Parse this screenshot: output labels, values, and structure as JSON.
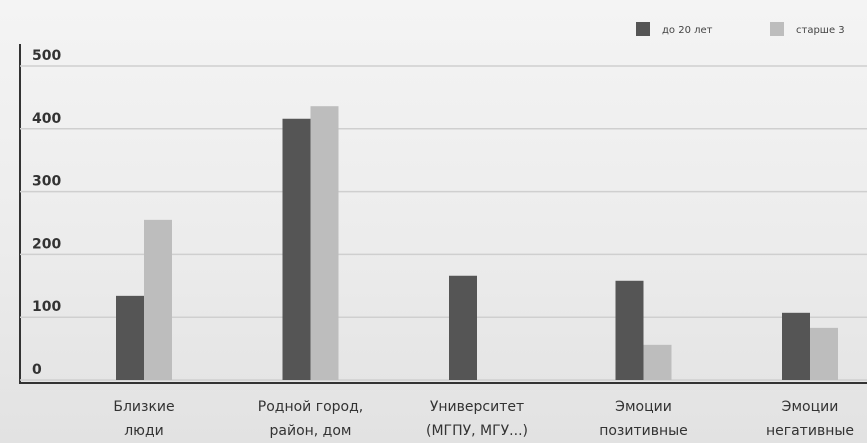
{
  "chart_data": {
    "type": "bar",
    "categories": [
      [
        "Близкие",
        "люди"
      ],
      [
        "Родной город,",
        "район, дом"
      ],
      [
        "Университет",
        "(МГПУ, МГУ...)"
      ],
      [
        "Эмоции",
        "позитивные"
      ],
      [
        "Эмоции",
        "негативные"
      ]
    ],
    "series": [
      {
        "name": "до 20 лет",
        "color": "#555555",
        "values": [
          134,
          416,
          166,
          158,
          107
        ]
      },
      {
        "name": "старше 3",
        "color": "#bdbdbd",
        "values": [
          255,
          436,
          null,
          56,
          83
        ]
      }
    ],
    "ylim": [
      0,
      500
    ],
    "yticks": [
      0,
      100,
      200,
      300,
      400,
      500
    ],
    "grid": true
  }
}
